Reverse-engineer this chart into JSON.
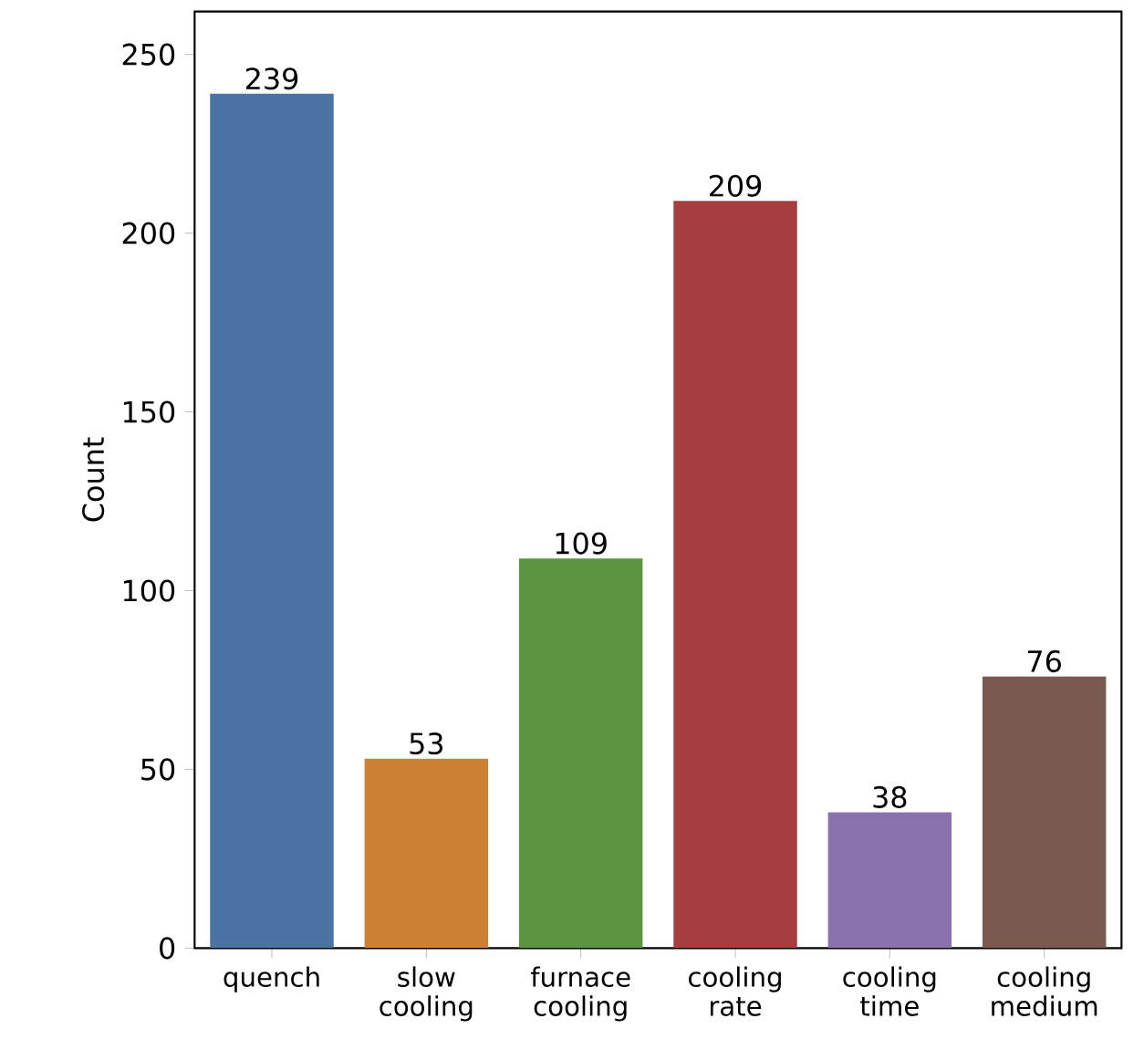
{
  "chart_data": {
    "type": "bar",
    "ylabel": "Count",
    "categories": [
      "quench",
      "slow cooling",
      "furnace cooling",
      "cooling rate",
      "cooling time",
      "cooling medium"
    ],
    "values": [
      239,
      53,
      109,
      209,
      38,
      76
    ],
    "colors": [
      "#4a72a3",
      "#cc8034",
      "#5d9442",
      "#a63e40",
      "#8a72ae",
      "#7a5a50"
    ],
    "ylim": [
      0,
      262
    ],
    "yticks": [
      0,
      50,
      100,
      150,
      200,
      250
    ],
    "data_labels": true
  }
}
